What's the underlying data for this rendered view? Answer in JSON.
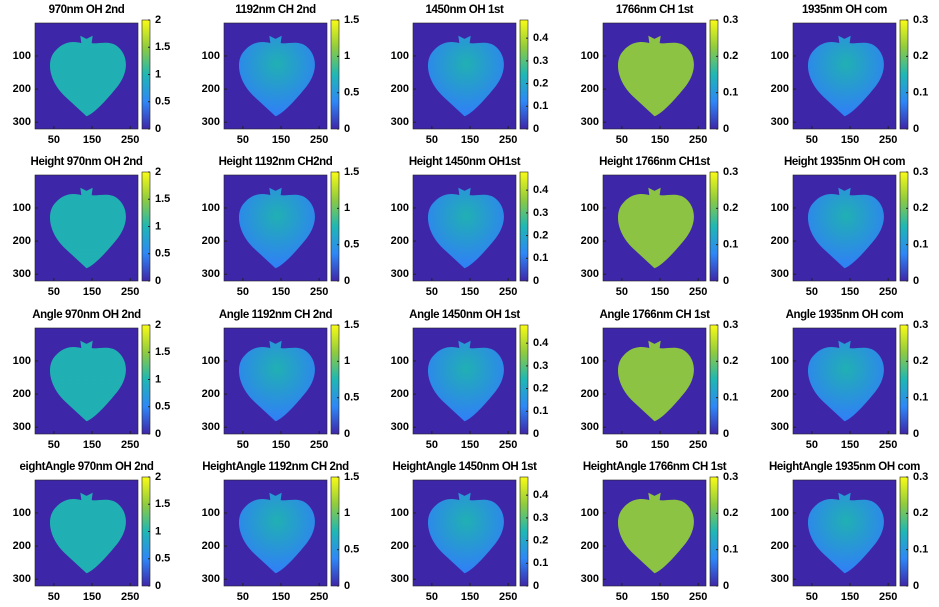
{
  "chart_data": [
    {
      "type": "image",
      "title": "970nm OH 2nd",
      "xlim": [
        0.5,
        270.5
      ],
      "xticks": [
        50,
        150,
        250
      ],
      "ylim": [
        0.5,
        320.5
      ],
      "yticks": [
        100,
        200,
        300
      ],
      "clim": [
        0,
        2
      ],
      "cticks": [
        0,
        0.5,
        1,
        1.5,
        2
      ],
      "colormap": [
        "#3e26a8",
        "#2e87f7",
        "#1fb7b4",
        "#90cb3e",
        "#f9fb15"
      ]
    },
    {
      "type": "image",
      "title": "1192nm CH 2nd",
      "xlim": [
        0.5,
        270.5
      ],
      "xticks": [
        50,
        150,
        250
      ],
      "ylim": [
        0.5,
        320.5
      ],
      "yticks": [
        100,
        200,
        300
      ],
      "clim": [
        0,
        1.5
      ],
      "cticks": [
        0,
        0.5,
        1,
        1.5
      ],
      "colormap": [
        "#3e26a8",
        "#2e87f7",
        "#1fb7b4",
        "#90cb3e",
        "#f9fb15"
      ]
    },
    {
      "type": "image",
      "title": "1450nm OH 1st",
      "xlim": [
        0.5,
        270.5
      ],
      "xticks": [
        50,
        150,
        250
      ],
      "ylim": [
        0.5,
        320.5
      ],
      "yticks": [
        100,
        200,
        300
      ],
      "clim": [
        0,
        0.48
      ],
      "cticks": [
        0,
        0.1,
        0.2,
        0.3,
        0.4
      ],
      "colormap": [
        "#3e26a8",
        "#2e87f7",
        "#1fb7b4",
        "#90cb3e",
        "#f9fb15"
      ]
    },
    {
      "type": "image",
      "title": "1766nm CH 1st",
      "xlim": [
        0.5,
        270.5
      ],
      "xticks": [
        50,
        150,
        250
      ],
      "ylim": [
        0.5,
        320.5
      ],
      "yticks": [
        100,
        200,
        300
      ],
      "clim": [
        0,
        0.3
      ],
      "cticks": [
        0,
        0.1,
        0.2,
        0.3
      ],
      "colormap": [
        "#3e26a8",
        "#2e87f7",
        "#1fb7b4",
        "#90cb3e",
        "#f9fb15"
      ]
    },
    {
      "type": "image",
      "title": "1935nm OH com",
      "xlim": [
        0.5,
        270.5
      ],
      "xticks": [
        50,
        150,
        250
      ],
      "ylim": [
        0.5,
        320.5
      ],
      "yticks": [
        100,
        200,
        300
      ],
      "clim": [
        0,
        0.3
      ],
      "cticks": [
        0,
        0.1,
        0.2,
        0.3
      ],
      "colormap": [
        "#3e26a8",
        "#2e87f7",
        "#1fb7b4",
        "#90cb3e",
        "#f9fb15"
      ]
    },
    {
      "type": "image",
      "title": "Height 970nm OH 2nd",
      "xlim": [
        0.5,
        270.5
      ],
      "xticks": [
        50,
        150,
        250
      ],
      "ylim": [
        0.5,
        320.5
      ],
      "yticks": [
        100,
        200,
        300
      ],
      "clim": [
        0,
        2
      ],
      "cticks": [
        0,
        0.5,
        1,
        1.5,
        2
      ],
      "colormap": [
        "#3e26a8",
        "#2e87f7",
        "#1fb7b4",
        "#90cb3e",
        "#f9fb15"
      ]
    },
    {
      "type": "image",
      "title": "Height 1192nm CH2nd",
      "xlim": [
        0.5,
        270.5
      ],
      "xticks": [
        50,
        150,
        250
      ],
      "ylim": [
        0.5,
        320.5
      ],
      "yticks": [
        100,
        200,
        300
      ],
      "clim": [
        0,
        1.5
      ],
      "cticks": [
        0,
        0.5,
        1,
        1.5
      ],
      "colormap": [
        "#3e26a8",
        "#2e87f7",
        "#1fb7b4",
        "#90cb3e",
        "#f9fb15"
      ]
    },
    {
      "type": "image",
      "title": "Height 1450nm OH1st",
      "xlim": [
        0.5,
        270.5
      ],
      "xticks": [
        50,
        150,
        250
      ],
      "ylim": [
        0.5,
        320.5
      ],
      "yticks": [
        100,
        200,
        300
      ],
      "clim": [
        0,
        0.48
      ],
      "cticks": [
        0,
        0.1,
        0.2,
        0.3,
        0.4
      ],
      "colormap": [
        "#3e26a8",
        "#2e87f7",
        "#1fb7b4",
        "#90cb3e",
        "#f9fb15"
      ]
    },
    {
      "type": "image",
      "title": "Height 1766nm CH1st",
      "xlim": [
        0.5,
        270.5
      ],
      "xticks": [
        50,
        150,
        250
      ],
      "ylim": [
        0.5,
        320.5
      ],
      "yticks": [
        100,
        200,
        300
      ],
      "clim": [
        0,
        0.3
      ],
      "cticks": [
        0,
        0.1,
        0.2,
        0.3
      ],
      "colormap": [
        "#3e26a8",
        "#2e87f7",
        "#1fb7b4",
        "#90cb3e",
        "#f9fb15"
      ]
    },
    {
      "type": "image",
      "title": "Height 1935nm OH com",
      "xlim": [
        0.5,
        270.5
      ],
      "xticks": [
        50,
        150,
        250
      ],
      "ylim": [
        0.5,
        320.5
      ],
      "yticks": [
        100,
        200,
        300
      ],
      "clim": [
        0,
        0.3
      ],
      "cticks": [
        0,
        0.1,
        0.2,
        0.3
      ],
      "colormap": [
        "#3e26a8",
        "#2e87f7",
        "#1fb7b4",
        "#90cb3e",
        "#f9fb15"
      ]
    },
    {
      "type": "image",
      "title": "Angle 970nm OH 2nd",
      "xlim": [
        0.5,
        270.5
      ],
      "xticks": [
        50,
        150,
        250
      ],
      "ylim": [
        0.5,
        320.5
      ],
      "yticks": [
        100,
        200,
        300
      ],
      "clim": [
        0,
        2
      ],
      "cticks": [
        0,
        0.5,
        1,
        1.5,
        2
      ],
      "colormap": [
        "#3e26a8",
        "#2e87f7",
        "#1fb7b4",
        "#90cb3e",
        "#f9fb15"
      ]
    },
    {
      "type": "image",
      "title": "Angle 1192nm CH 2nd",
      "xlim": [
        0.5,
        270.5
      ],
      "xticks": [
        50,
        150,
        250
      ],
      "ylim": [
        0.5,
        320.5
      ],
      "yticks": [
        100,
        200,
        300
      ],
      "clim": [
        0,
        1.5
      ],
      "cticks": [
        0,
        0.5,
        1,
        1.5
      ],
      "colormap": [
        "#3e26a8",
        "#2e87f7",
        "#1fb7b4",
        "#90cb3e",
        "#f9fb15"
      ]
    },
    {
      "type": "image",
      "title": "Angle 1450nm OH 1st",
      "xlim": [
        0.5,
        270.5
      ],
      "xticks": [
        50,
        150,
        250
      ],
      "ylim": [
        0.5,
        320.5
      ],
      "yticks": [
        100,
        200,
        300
      ],
      "clim": [
        0,
        0.48
      ],
      "cticks": [
        0,
        0.1,
        0.2,
        0.3,
        0.4
      ],
      "colormap": [
        "#3e26a8",
        "#2e87f7",
        "#1fb7b4",
        "#90cb3e",
        "#f9fb15"
      ]
    },
    {
      "type": "image",
      "title": "Angle 1766nm CH 1st",
      "xlim": [
        0.5,
        270.5
      ],
      "xticks": [
        50,
        150,
        250
      ],
      "ylim": [
        0.5,
        320.5
      ],
      "yticks": [
        100,
        200,
        300
      ],
      "clim": [
        0,
        0.3
      ],
      "cticks": [
        0,
        0.1,
        0.2,
        0.3
      ],
      "colormap": [
        "#3e26a8",
        "#2e87f7",
        "#1fb7b4",
        "#90cb3e",
        "#f9fb15"
      ]
    },
    {
      "type": "image",
      "title": "Angle 1935nm OH com",
      "xlim": [
        0.5,
        270.5
      ],
      "xticks": [
        50,
        150,
        250
      ],
      "ylim": [
        0.5,
        320.5
      ],
      "yticks": [
        100,
        200,
        300
      ],
      "clim": [
        0,
        0.3
      ],
      "cticks": [
        0,
        0.1,
        0.2,
        0.3
      ],
      "colormap": [
        "#3e26a8",
        "#2e87f7",
        "#1fb7b4",
        "#90cb3e",
        "#f9fb15"
      ]
    },
    {
      "type": "image",
      "title": "eightAngle 970nm OH 2nd",
      "xlim": [
        0.5,
        270.5
      ],
      "xticks": [
        50,
        150,
        250
      ],
      "ylim": [
        0.5,
        320.5
      ],
      "yticks": [
        100,
        200,
        300
      ],
      "clim": [
        0,
        2
      ],
      "cticks": [
        0,
        0.5,
        1,
        1.5,
        2
      ],
      "colormap": [
        "#3e26a8",
        "#2e87f7",
        "#1fb7b4",
        "#90cb3e",
        "#f9fb15"
      ]
    },
    {
      "type": "image",
      "title": "HeightAngle 1192nm CH 2nd",
      "xlim": [
        0.5,
        270.5
      ],
      "xticks": [
        50,
        150,
        250
      ],
      "ylim": [
        0.5,
        320.5
      ],
      "yticks": [
        100,
        200,
        300
      ],
      "clim": [
        0,
        1.5
      ],
      "cticks": [
        0,
        0.5,
        1,
        1.5
      ],
      "colormap": [
        "#3e26a8",
        "#2e87f7",
        "#1fb7b4",
        "#90cb3e",
        "#f9fb15"
      ]
    },
    {
      "type": "image",
      "title": "HeightAngle 1450nm OH 1st",
      "xlim": [
        0.5,
        270.5
      ],
      "xticks": [
        50,
        150,
        250
      ],
      "ylim": [
        0.5,
        320.5
      ],
      "yticks": [
        100,
        200,
        300
      ],
      "clim": [
        0,
        0.48
      ],
      "cticks": [
        0,
        0.1,
        0.2,
        0.3,
        0.4
      ],
      "colormap": [
        "#3e26a8",
        "#2e87f7",
        "#1fb7b4",
        "#90cb3e",
        "#f9fb15"
      ]
    },
    {
      "type": "image",
      "title": "HeightAngle 1766nm CH 1st",
      "xlim": [
        0.5,
        270.5
      ],
      "xticks": [
        50,
        150,
        250
      ],
      "ylim": [
        0.5,
        320.5
      ],
      "yticks": [
        100,
        200,
        300
      ],
      "clim": [
        0,
        0.3
      ],
      "cticks": [
        0,
        0.1,
        0.2,
        0.3
      ],
      "colormap": [
        "#3e26a8",
        "#2e87f7",
        "#1fb7b4",
        "#90cb3e",
        "#f9fb15"
      ]
    },
    {
      "type": "image",
      "title": "HeightAngle 1935nm OH com",
      "xlim": [
        0.5,
        270.5
      ],
      "xticks": [
        50,
        150,
        250
      ],
      "ylim": [
        0.5,
        320.5
      ],
      "yticks": [
        100,
        200,
        300
      ],
      "clim": [
        0,
        0.3
      ],
      "cticks": [
        0,
        0.1,
        0.2,
        0.3
      ],
      "colormap": [
        "#3e26a8",
        "#2e87f7",
        "#1fb7b4",
        "#90cb3e",
        "#f9fb15"
      ]
    }
  ]
}
